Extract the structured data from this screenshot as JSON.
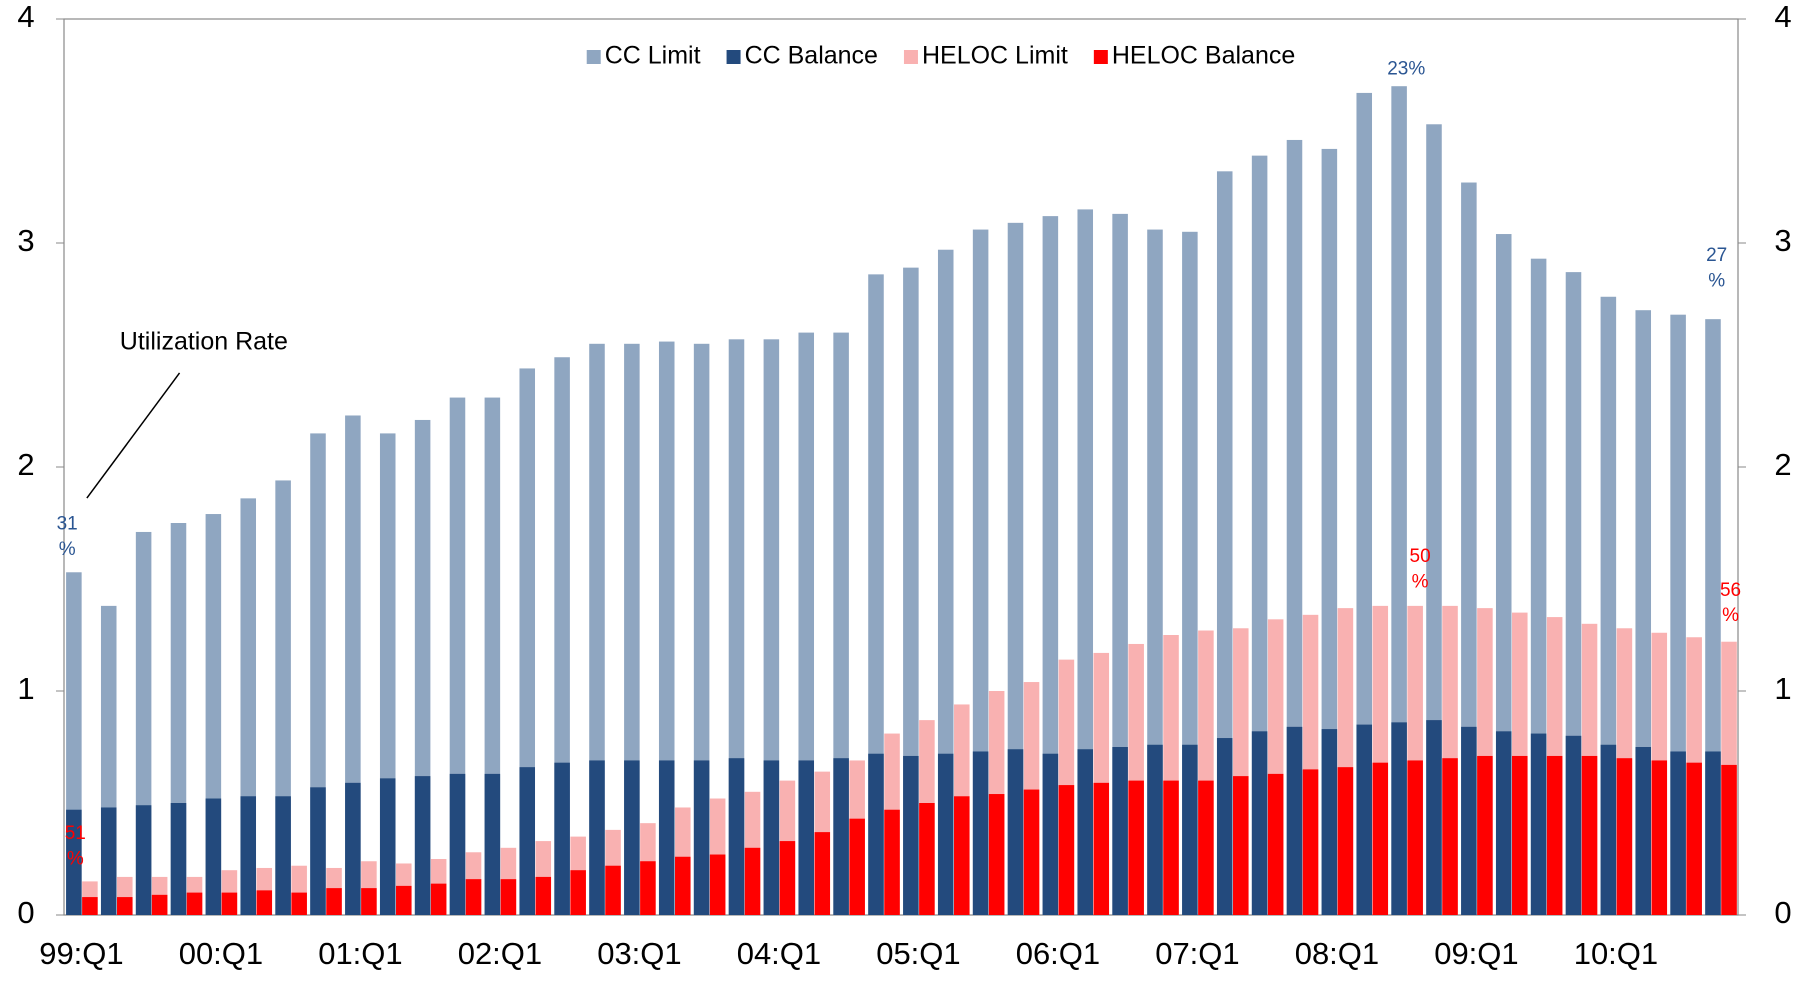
{
  "chart_data": {
    "type": "bar",
    "categories": [
      "99:Q1",
      null,
      null,
      null,
      "00:Q1",
      null,
      null,
      null,
      "01:Q1",
      null,
      null,
      null,
      "02:Q1",
      null,
      null,
      null,
      "03:Q1",
      null,
      null,
      null,
      "04:Q1",
      null,
      null,
      null,
      "05:Q1",
      null,
      null,
      null,
      "06:Q1",
      null,
      null,
      null,
      "07:Q1",
      null,
      null,
      null,
      "08:Q1",
      null,
      null,
      null,
      "09:Q1",
      null,
      null,
      null,
      "10:Q1",
      null,
      null,
      null
    ],
    "series": [
      {
        "name": "CC Limit",
        "color": "#8fa6c1",
        "group": "CC",
        "values": [
          1.53,
          1.38,
          1.71,
          1.75,
          1.79,
          1.86,
          1.94,
          2.15,
          2.23,
          2.15,
          2.21,
          2.31,
          2.31,
          2.44,
          2.49,
          2.55,
          2.55,
          2.56,
          2.55,
          2.57,
          2.57,
          2.6,
          2.6,
          2.86,
          2.89,
          2.97,
          3.06,
          3.09,
          3.12,
          3.15,
          3.13,
          3.06,
          3.05,
          3.32,
          3.39,
          3.46,
          3.42,
          3.67,
          3.7,
          3.53,
          3.27,
          3.04,
          2.93,
          2.87,
          2.76,
          2.7,
          2.68,
          2.66
        ]
      },
      {
        "name": "CC Balance",
        "color": "#234a7d",
        "group": "CC",
        "values": [
          0.47,
          0.48,
          0.49,
          0.5,
          0.52,
          0.53,
          0.53,
          0.57,
          0.59,
          0.61,
          0.62,
          0.63,
          0.63,
          0.66,
          0.68,
          0.69,
          0.69,
          0.69,
          0.69,
          0.7,
          0.69,
          0.69,
          0.7,
          0.72,
          0.71,
          0.72,
          0.73,
          0.74,
          0.72,
          0.74,
          0.75,
          0.76,
          0.76,
          0.79,
          0.82,
          0.84,
          0.83,
          0.85,
          0.86,
          0.87,
          0.84,
          0.82,
          0.81,
          0.8,
          0.76,
          0.75,
          0.73,
          0.73
        ]
      },
      {
        "name": "HELOC Limit",
        "color": "#f9b1b1",
        "group": "HELOC",
        "values": [
          0.15,
          0.17,
          0.17,
          0.17,
          0.2,
          0.21,
          0.22,
          0.21,
          0.24,
          0.23,
          0.25,
          0.28,
          0.3,
          0.33,
          0.35,
          0.38,
          0.41,
          0.48,
          0.52,
          0.55,
          0.6,
          0.64,
          0.69,
          0.81,
          0.87,
          0.94,
          1.0,
          1.04,
          1.14,
          1.17,
          1.21,
          1.25,
          1.27,
          1.28,
          1.32,
          1.34,
          1.37,
          1.38,
          1.38,
          1.38,
          1.37,
          1.35,
          1.33,
          1.3,
          1.28,
          1.26,
          1.24,
          1.22
        ]
      },
      {
        "name": "HELOC Balance",
        "color": "#ff0000",
        "group": "HELOC",
        "values": [
          0.08,
          0.08,
          0.09,
          0.1,
          0.1,
          0.11,
          0.1,
          0.12,
          0.12,
          0.13,
          0.14,
          0.16,
          0.16,
          0.17,
          0.2,
          0.22,
          0.24,
          0.26,
          0.27,
          0.3,
          0.33,
          0.37,
          0.43,
          0.47,
          0.5,
          0.53,
          0.54,
          0.56,
          0.58,
          0.59,
          0.6,
          0.6,
          0.6,
          0.62,
          0.63,
          0.65,
          0.66,
          0.68,
          0.69,
          0.7,
          0.71,
          0.71,
          0.71,
          0.71,
          0.7,
          0.69,
          0.68,
          0.67
        ]
      }
    ],
    "ylim": [
      0,
      4
    ],
    "yticks": [
      0,
      1,
      2,
      3,
      4
    ],
    "y2lim": [
      0,
      4
    ],
    "y2ticks": [
      0,
      1,
      2,
      3,
      4
    ],
    "legend": "top",
    "annotations": [
      {
        "lines": [
          "Utilization Rate"
        ],
        "color": "#000000"
      },
      {
        "lines": [
          "31",
          "%"
        ],
        "color": "#2a5592"
      },
      {
        "lines": [
          "51",
          "%"
        ],
        "color": "#ff0000"
      },
      {
        "lines": [
          "23%"
        ],
        "color": "#2a5592"
      },
      {
        "lines": [
          "50",
          "%"
        ],
        "color": "#ff0000"
      },
      {
        "lines": [
          "27",
          "%"
        ],
        "color": "#2a5592"
      },
      {
        "lines": [
          "56",
          "%"
        ],
        "color": "#ff0000"
      }
    ]
  }
}
